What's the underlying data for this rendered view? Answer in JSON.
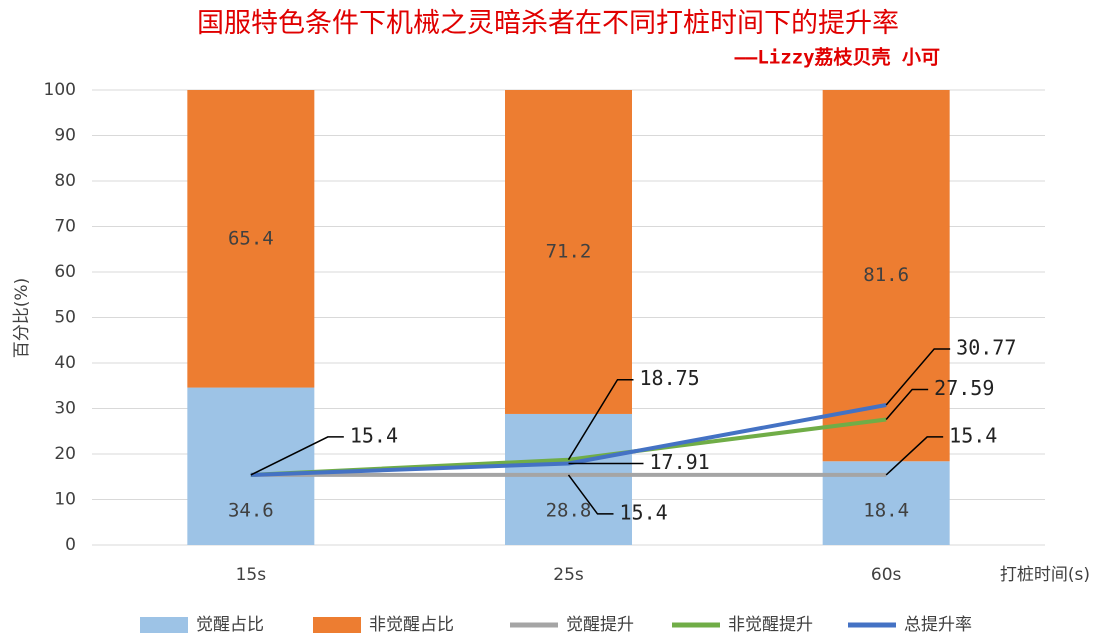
{
  "chart_data": {
    "type": "combo",
    "title": "国服特色条件下机械之灵暗杀者在不同打桩时间下的提升率",
    "subtitle": "——Lizzy荔枝贝壳 小可",
    "y_label": "百分比(%)",
    "x_label": "打桩时间(s)",
    "categories": [
      "15s",
      "25s",
      "60s"
    ],
    "ylim": [
      0,
      100
    ],
    "yticks": [
      0,
      10,
      20,
      30,
      40,
      50,
      60,
      70,
      80,
      90,
      100
    ],
    "grid": true,
    "series": [
      {
        "name": "觉醒占比",
        "type": "bar",
        "color": "#9dc3e6",
        "values": [
          34.6,
          28.8,
          18.4
        ]
      },
      {
        "name": "非觉醒占比",
        "type": "bar",
        "color": "#ed7d31",
        "values": [
          65.4,
          71.2,
          81.6
        ]
      },
      {
        "name": "觉醒提升",
        "type": "line",
        "color": "#a5a5a5",
        "values": [
          15.4,
          15.4,
          15.4
        ]
      },
      {
        "name": "非觉醒提升",
        "type": "line",
        "color": "#70ad47",
        "values": [
          15.4,
          18.75,
          27.59
        ],
        "value_labels": [
          null,
          "18.75",
          "27.59"
        ]
      },
      {
        "name": "总提升率",
        "type": "line",
        "color": "#4472c4",
        "values": [
          15.4,
          17.91,
          30.77
        ],
        "value_labels": [
          null,
          "17.91",
          "30.77"
        ]
      }
    ]
  }
}
